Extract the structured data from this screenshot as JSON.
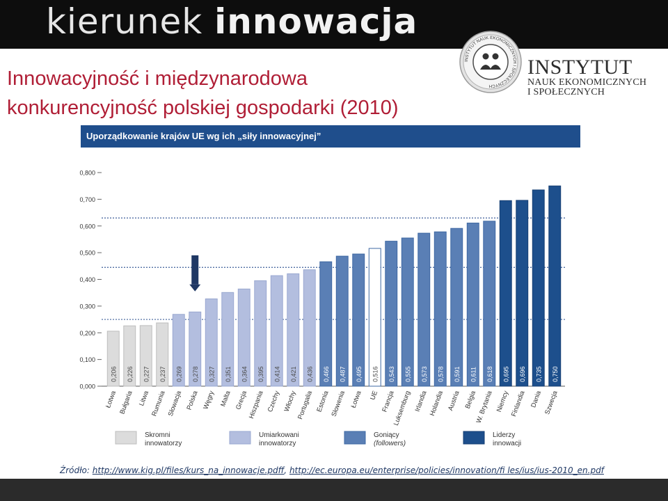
{
  "banner": {
    "word1": "kierunek",
    "word2": "innowacja"
  },
  "logo": {
    "seal_text": "INSTYTUT NAUK EKONOMICZNYCH I SPOŁECZNYCH",
    "line1": "INSTYTUT",
    "line2": "NAUK EKONOMICZNYCH",
    "line3": "I SPOŁECZNYCH"
  },
  "page_title": {
    "line1": "Innowacyjność i międzynarodowa",
    "line2": "konkurencyjność polskiej gospodarki (2010)"
  },
  "source": {
    "prefix": "Źródło:",
    "link1": "http://www.kig.pl/files/kurs_na_innowacje.pdff",
    "sep": ",",
    "link2": "http://ec.europa.eu/enterprise/policies/innovation/fi les/ius/ius-2010_en.pdf"
  },
  "colors": {
    "banner": "#0d0d0d",
    "title": "#b01e36",
    "header": "#1f4e8c",
    "arrow": "#1f3864"
  },
  "chart_data": {
    "type": "bar",
    "title": "Uporządkowanie krajów UE wg ich „siły innowacyjnej”",
    "ylim": [
      0,
      0.8
    ],
    "yticks": [
      "0,000",
      "0,100",
      "0,200",
      "0,300",
      "0,400",
      "0,500",
      "0,600",
      "0,700",
      "0,800"
    ],
    "grid": false,
    "categories": [
      "Łotwa",
      "Bułgaria",
      "Litwa",
      "Rumunia",
      "Słowacja",
      "Polska",
      "Węgry",
      "Malta",
      "Grecja",
      "Hiszpania",
      "Czechy",
      "Włochy",
      "Portugalia",
      "Estonia",
      "Słowenia",
      "Łotwa",
      "UE",
      "Francja",
      "Luksemburg",
      "Irlandia",
      "Holandia",
      "Austria",
      "Belgia",
      "W. Brytania",
      "Niemcy",
      "Finlandia",
      "Dania",
      "Szwecja"
    ],
    "values": [
      0.206,
      0.226,
      0.227,
      0.237,
      0.269,
      0.278,
      0.327,
      0.351,
      0.364,
      0.395,
      0.414,
      0.421,
      0.436,
      0.466,
      0.487,
      0.495,
      0.516,
      0.543,
      0.555,
      0.573,
      0.578,
      0.591,
      0.611,
      0.618,
      0.695,
      0.696,
      0.735,
      0.75
    ],
    "value_labels": [
      "0,206",
      "0,226",
      "0,227",
      "0,237",
      "0,269",
      "0,278",
      "0,327",
      "0,351",
      "0,364",
      "0,395",
      "0,414",
      "0,421",
      "0,436",
      "0,466",
      "0,487",
      "0,495",
      "0,516",
      "0,543",
      "0,555",
      "0,573",
      "0,578",
      "0,591",
      "0,611",
      "0,618",
      "0,695",
      "0,696",
      "0,735",
      "0,750"
    ],
    "groups": [
      0,
      0,
      0,
      0,
      1,
      1,
      1,
      1,
      1,
      1,
      1,
      1,
      1,
      2,
      2,
      2,
      3,
      2,
      2,
      2,
      2,
      2,
      2,
      2,
      4,
      4,
      4,
      4
    ],
    "group_colors": [
      "#dcdcdc",
      "#b3bedf",
      "#5a7fb5",
      "#ffffff",
      "#1d4f8c"
    ],
    "group_strokes": [
      "#bdbdbd",
      "#9aa8d0",
      "#3e68a3",
      "#3e68a3",
      "#163f73"
    ],
    "legend": [
      {
        "label1": "Skromni",
        "label2": "innowatorzy",
        "group": 0
      },
      {
        "label1": "Umiarkowani",
        "label2": "innowatorzy",
        "group": 1
      },
      {
        "label1": "Goniący",
        "label2": "(followers)",
        "group": 2
      },
      {
        "label1": "Liderzy",
        "label2": "innowacji",
        "group": 4
      }
    ],
    "dashed_refs": [
      0.25,
      0.445,
      0.63
    ],
    "highlight": "Polska"
  }
}
